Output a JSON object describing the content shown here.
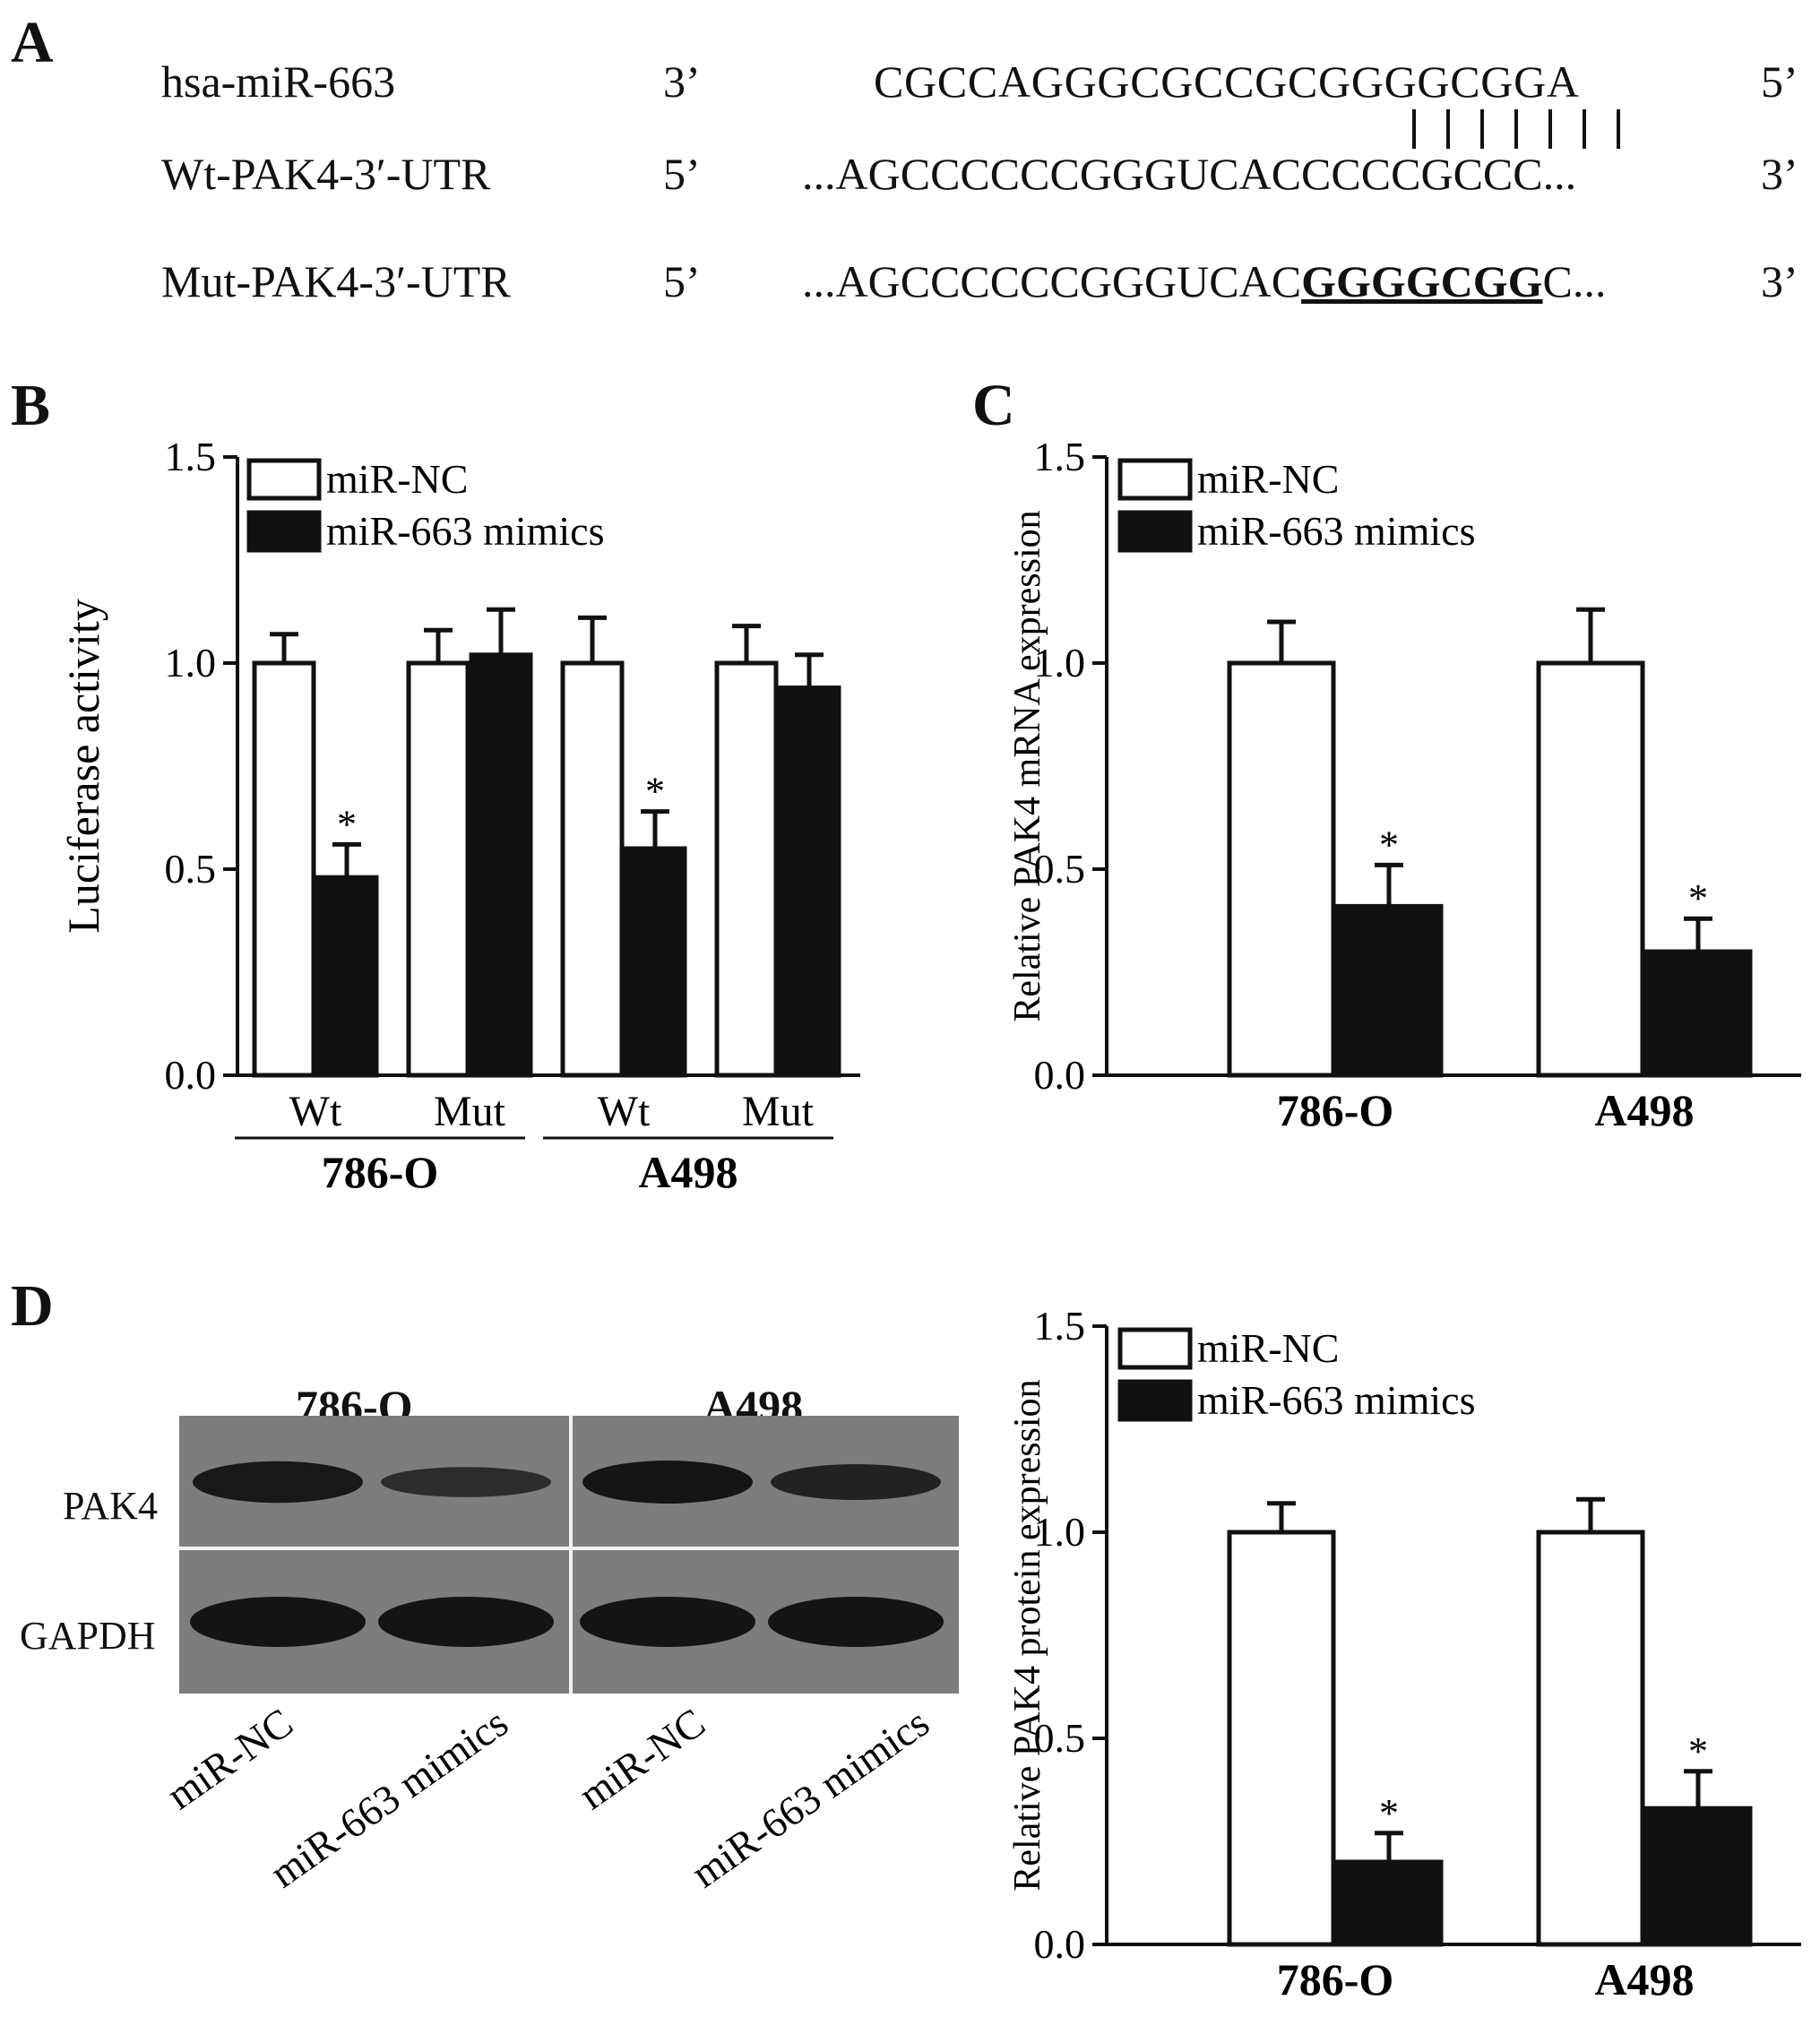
{
  "panels": {
    "a": "A",
    "b": "B",
    "c": "C",
    "d": "D"
  },
  "sequences": [
    {
      "name": "hsa-miR-663",
      "left_end": "3’",
      "sequence": "CGCCAGGGCGCCGCGGGGCGGA",
      "mutated": "",
      "tail": "",
      "right_end": "5’"
    },
    {
      "name": "Wt-PAK4-3′-UTR",
      "left_end": "5’",
      "sequence": "...AGCCCCCCGGGUCACCCCCGCCC...",
      "mutated": "",
      "tail": "",
      "right_end": "3’"
    },
    {
      "name": "Mut-PAK4-3′-UTR",
      "left_end": "5’",
      "sequence": "...AGCCCCCCGGGUCAC",
      "mutated": "GGGGCGG",
      "tail": "C...",
      "right_end": "3’"
    }
  ],
  "colors": {
    "nc": "#ffffff",
    "mimics": "#111111",
    "stroke": "#111111"
  },
  "chart_data": [
    {
      "panel": "B",
      "type": "bar",
      "ylabel": "Luciferase activity",
      "ylim": [
        0,
        1.5
      ],
      "yticks": [
        "0.0",
        "0.5",
        "1.0",
        "1.5"
      ],
      "categories": [
        "Wt",
        "Mut",
        "Wt",
        "Mut"
      ],
      "groups": [
        "786-O",
        "A498"
      ],
      "series": [
        {
          "name": "miR-NC",
          "values": [
            1.0,
            1.0,
            1.0,
            1.0
          ],
          "errors": [
            0.07,
            0.08,
            0.11,
            0.09
          ],
          "sig": [
            "",
            "",
            "",
            ""
          ]
        },
        {
          "name": "miR-663 mimics",
          "values": [
            0.48,
            1.02,
            0.55,
            0.94
          ],
          "errors": [
            0.08,
            0.11,
            0.09,
            0.08
          ],
          "sig": [
            "*",
            "",
            "*",
            ""
          ]
        }
      ],
      "legend": "top-left"
    },
    {
      "panel": "C",
      "type": "bar",
      "ylabel": "Relative PAK4 mRNA expression",
      "ylim": [
        0,
        1.5
      ],
      "yticks": [
        "0.0",
        "0.5",
        "1.0",
        "1.5"
      ],
      "categories": [
        "786-O",
        "A498"
      ],
      "series": [
        {
          "name": "miR-NC",
          "values": [
            1.0,
            1.0
          ],
          "errors": [
            0.1,
            0.13
          ],
          "sig": [
            "",
            ""
          ]
        },
        {
          "name": "miR-663 mimics",
          "values": [
            0.41,
            0.3
          ],
          "errors": [
            0.1,
            0.08
          ],
          "sig": [
            "*",
            "*"
          ]
        }
      ],
      "legend": "top-left"
    },
    {
      "panel": "D",
      "type": "bar",
      "ylabel": "Relative PAK4 protein expression",
      "ylim": [
        0,
        1.5
      ],
      "yticks": [
        "0.0",
        "0.5",
        "1.0",
        "1.5"
      ],
      "categories": [
        "786-O",
        "A498"
      ],
      "series": [
        {
          "name": "miR-NC",
          "values": [
            1.0,
            1.0
          ],
          "errors": [
            0.07,
            0.08
          ],
          "sig": [
            "",
            ""
          ]
        },
        {
          "name": "miR-663 mimics",
          "values": [
            0.2,
            0.33
          ],
          "errors": [
            0.07,
            0.09
          ],
          "sig": [
            "*",
            "*"
          ]
        }
      ],
      "legend": "top-left"
    }
  ],
  "blot": {
    "groups": [
      "786-O",
      "A498"
    ],
    "rows": [
      "PAK4",
      "GAPDH"
    ],
    "lanes": [
      "miR-NC",
      "miR-663 mimics",
      "miR-NC",
      "miR-663 mimics"
    ],
    "pak4_intensity": [
      0.95,
      0.55,
      1.0,
      0.75
    ],
    "gapdh_intensity": [
      1.0,
      1.0,
      1.0,
      1.0
    ]
  }
}
